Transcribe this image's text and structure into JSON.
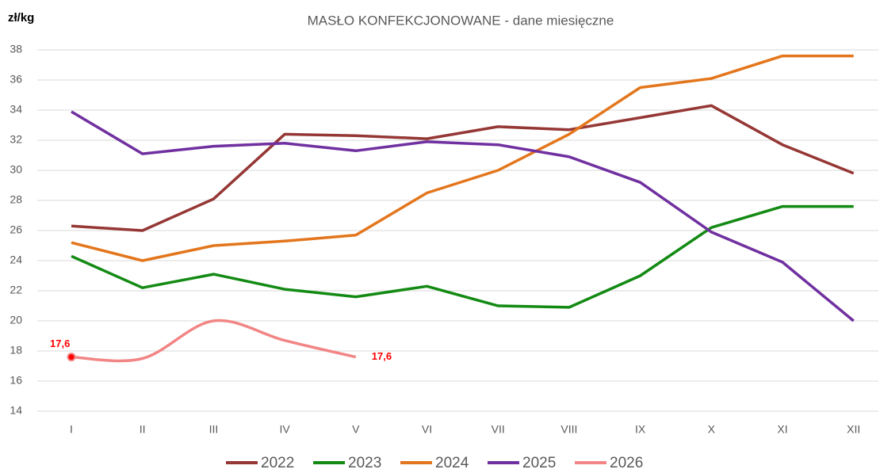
{
  "chart_data": {
    "type": "line",
    "title": "MASŁO KONFEKCJONOWANE - dane miesięczne",
    "y_label": "zł/kg",
    "categories": [
      "I",
      "II",
      "III",
      "IV",
      "V",
      "VI",
      "VII",
      "VIII",
      "IX",
      "X",
      "XI",
      "XII"
    ],
    "series": [
      {
        "name": "2022",
        "color": "#953735",
        "values": [
          26.3,
          26.0,
          28.1,
          32.4,
          32.3,
          32.1,
          32.9,
          32.7,
          33.5,
          34.3,
          31.7,
          29.8
        ]
      },
      {
        "name": "2023",
        "color": "#138a13",
        "values": [
          24.3,
          22.2,
          23.1,
          22.1,
          21.6,
          22.3,
          21.0,
          20.9,
          23.0,
          26.2,
          27.6,
          27.6
        ]
      },
      {
        "name": "2024",
        "color": "#e3761c",
        "values": [
          25.2,
          24.0,
          25.0,
          25.3,
          25.7,
          28.5,
          30.0,
          32.4,
          35.5,
          36.1,
          37.6,
          37.6
        ]
      },
      {
        "name": "2025",
        "color": "#7030a0",
        "values": [
          33.9,
          31.1,
          31.6,
          31.8,
          31.3,
          31.9,
          31.7,
          30.9,
          29.2,
          25.9,
          23.9,
          20.0
        ]
      },
      {
        "name": "2026",
        "color": "#f28585",
        "smooth": true,
        "label_color": "#ff0000",
        "values": [
          17.6,
          17.5,
          20.0,
          18.7,
          17.6,
          null,
          null,
          null,
          null,
          null,
          null,
          null
        ],
        "value_labels": [
          "17,6",
          null,
          null,
          null,
          "17,6",
          null,
          null,
          null,
          null,
          null,
          null,
          null
        ]
      }
    ],
    "ylim": [
      14,
      38
    ],
    "yticks": [
      14,
      16,
      18,
      20,
      22,
      24,
      26,
      28,
      30,
      32,
      34,
      36,
      38
    ],
    "grid": true,
    "legend": "bottom"
  }
}
